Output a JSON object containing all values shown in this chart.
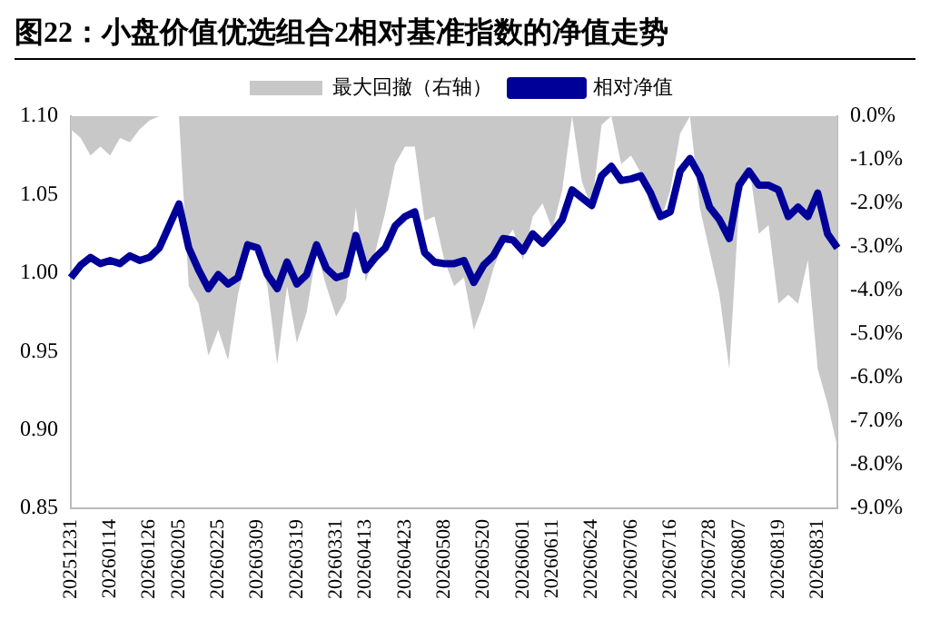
{
  "chart_data": {
    "type": "line",
    "title": "图22：小盘价值优选组合2相对基准指数的净值走势",
    "categories": [
      "20251231",
      null,
      null,
      null,
      "20260114",
      null,
      null,
      null,
      "20260126",
      null,
      null,
      "20260205",
      null,
      null,
      null,
      "20260225",
      null,
      null,
      null,
      "20260309",
      null,
      null,
      null,
      "20260319",
      null,
      null,
      null,
      "20260331",
      null,
      null,
      "20260413",
      null,
      null,
      null,
      "20260423",
      null,
      null,
      null,
      "20260508",
      null,
      null,
      null,
      "20260520",
      null,
      null,
      null,
      "20260601",
      null,
      null,
      "20260611",
      null,
      null,
      null,
      "20260624",
      null,
      null,
      null,
      "20260706",
      null,
      null,
      null,
      "20260716",
      null,
      null,
      null,
      "20260728",
      null,
      null,
      "20260807",
      null,
      null,
      null,
      "20260819",
      null,
      null,
      null,
      "20260831",
      null,
      null
    ],
    "series": [
      {
        "name": "最大回撤（右轴）",
        "type": "area",
        "axis": "y2",
        "color": "#c8c8c8",
        "values": [
          -0.3,
          -0.5,
          -0.9,
          -0.7,
          -0.9,
          -0.5,
          -0.6,
          -0.3,
          -0.1,
          0,
          0,
          0,
          -3.9,
          -4.3,
          -5.5,
          -4.9,
          -5.6,
          -4.1,
          -3.1,
          -3.0,
          -3.9,
          -5.7,
          -3.9,
          -5.2,
          -4.5,
          -3.1,
          -3.9,
          -4.6,
          -4.2,
          -2.1,
          -3.8,
          -3.1,
          -2.2,
          -1.1,
          -0.7,
          -0.7,
          -2.4,
          -2.3,
          -3.3,
          -3.9,
          -3.7,
          -4.9,
          -4.3,
          -3.5,
          -2.9,
          -2.6,
          -3.3,
          -2.3,
          -2.0,
          -2.6,
          -1.7,
          0,
          -1.5,
          -2.1,
          -0.2,
          0,
          -1.1,
          -0.9,
          -1.3,
          -2.1,
          -2.4,
          -1.7,
          -0.4,
          0,
          -2.1,
          -3.1,
          -4.1,
          -5.8,
          -2.0,
          -1.1,
          -2.7,
          -2.5,
          -4.3,
          -4.1,
          -4.3,
          -3.3,
          -5.8,
          -6.6,
          -7.6
        ]
      },
      {
        "name": "相对净值",
        "type": "line",
        "color": "#000099",
        "values": [
          0.997,
          1.005,
          1.01,
          1.006,
          1.008,
          1.006,
          1.011,
          1.008,
          1.01,
          1.016,
          1.03,
          1.044,
          1.016,
          1.002,
          0.99,
          0.999,
          0.993,
          0.997,
          1.018,
          1.016,
          0.999,
          0.99,
          1.007,
          0.993,
          0.999,
          1.018,
          1.003,
          0.997,
          0.999,
          1.024,
          1.002,
          1.01,
          1.016,
          1.03,
          1.036,
          1.039,
          1.013,
          1.007,
          1.006,
          1.006,
          1.008,
          0.994,
          1.005,
          1.011,
          1.022,
          1.021,
          1.014,
          1.025,
          1.019,
          1.026,
          1.034,
          1.053,
          1.048,
          1.043,
          1.062,
          1.068,
          1.059,
          1.06,
          1.062,
          1.051,
          1.036,
          1.039,
          1.065,
          1.073,
          1.062,
          1.042,
          1.034,
          1.022,
          1.056,
          1.065,
          1.056,
          1.056,
          1.053,
          1.036,
          1.042,
          1.036,
          1.051,
          1.025,
          1.016
        ]
      }
    ],
    "ylim": [
      0.85,
      1.1
    ],
    "yticks": [
      {
        "value": 0.85,
        "label": "0.85"
      },
      {
        "value": 0.9,
        "label": "0.90"
      },
      {
        "value": 0.95,
        "label": "0.95"
      },
      {
        "value": 1.0,
        "label": "1.00"
      },
      {
        "value": 1.05,
        "label": "1.05"
      },
      {
        "value": 1.1,
        "label": "1.10"
      }
    ],
    "y2lim": [
      -9,
      0
    ],
    "y2ticks": [
      {
        "value": -9,
        "label": "-9.0%"
      },
      {
        "value": -8,
        "label": "-8.0%"
      },
      {
        "value": -7,
        "label": "-7.0%"
      },
      {
        "value": -6,
        "label": "-6.0%"
      },
      {
        "value": -5,
        "label": "-5.0%"
      },
      {
        "value": -4,
        "label": "-4.0%"
      },
      {
        "value": -3,
        "label": "-3.0%"
      },
      {
        "value": -2,
        "label": "-2.0%"
      },
      {
        "value": -1,
        "label": "-1.0%"
      },
      {
        "value": 0,
        "label": "0.0%"
      }
    ],
    "grid": false,
    "legend": "top"
  }
}
